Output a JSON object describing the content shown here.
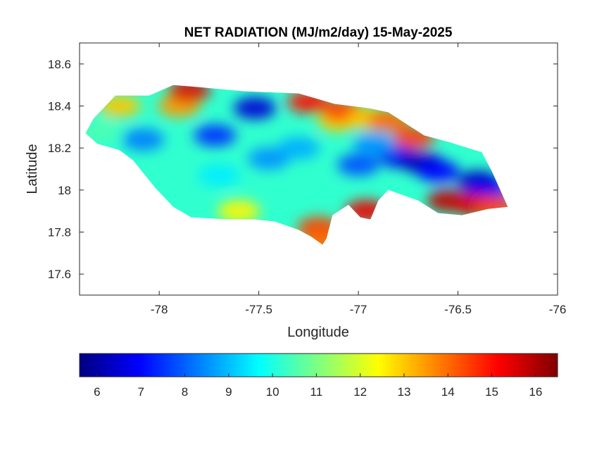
{
  "chart_data": {
    "type": "heatmap",
    "title": "NET RADIATION (MJ/m2/day) 15-May-2025",
    "xlabel": "Longitude",
    "ylabel": "Latitude",
    "xlim": [
      -78.4,
      -76
    ],
    "ylim": [
      17.5,
      18.7
    ],
    "x_ticks": [
      -78,
      -77.5,
      -77,
      -76.5,
      -76
    ],
    "x_tick_labels": [
      "-78",
      "-77.5",
      "-77",
      "-76.5",
      "-76"
    ],
    "y_ticks": [
      17.6,
      17.8,
      18,
      18.2,
      18.4,
      18.6
    ],
    "y_tick_labels": [
      "17.6",
      "17.8",
      "18",
      "18.2",
      "18.4",
      "18.6"
    ],
    "colormap": "jet",
    "colorbar": {
      "placement": "bottom",
      "range": [
        5.6,
        16.5
      ],
      "ticks": [
        6,
        7,
        8,
        9,
        10,
        11,
        12,
        13,
        14,
        15,
        16
      ],
      "tick_labels": [
        "6",
        "7",
        "8",
        "9",
        "10",
        "11",
        "12",
        "13",
        "14",
        "15",
        "16"
      ]
    },
    "grid": false,
    "region_outline": [
      [
        -78.37,
        18.27
      ],
      [
        -78.33,
        18.34
      ],
      [
        -78.22,
        18.45
      ],
      [
        -78.05,
        18.45
      ],
      [
        -77.93,
        18.5
      ],
      [
        -77.8,
        18.49
      ],
      [
        -77.57,
        18.47
      ],
      [
        -77.3,
        18.46
      ],
      [
        -77.12,
        18.41
      ],
      [
        -76.95,
        18.39
      ],
      [
        -76.85,
        18.37
      ],
      [
        -76.67,
        18.26
      ],
      [
        -76.55,
        18.23
      ],
      [
        -76.38,
        18.18
      ],
      [
        -76.33,
        18.09
      ],
      [
        -76.25,
        17.92
      ],
      [
        -76.35,
        17.91
      ],
      [
        -76.48,
        17.88
      ],
      [
        -76.6,
        17.89
      ],
      [
        -76.7,
        17.95
      ],
      [
        -76.85,
        18.0
      ],
      [
        -76.9,
        17.95
      ],
      [
        -76.94,
        17.86
      ],
      [
        -76.99,
        17.87
      ],
      [
        -77.05,
        17.93
      ],
      [
        -77.13,
        17.88
      ],
      [
        -77.16,
        17.77
      ],
      [
        -77.18,
        17.74
      ],
      [
        -77.24,
        17.78
      ],
      [
        -77.3,
        17.81
      ],
      [
        -77.42,
        17.85
      ],
      [
        -77.52,
        17.86
      ],
      [
        -77.66,
        17.86
      ],
      [
        -77.84,
        17.87
      ],
      [
        -77.93,
        17.92
      ],
      [
        -78.02,
        18.01
      ],
      [
        -78.13,
        18.14
      ],
      [
        -78.2,
        18.19
      ],
      [
        -78.31,
        18.22
      ]
    ],
    "features": [
      {
        "lon": -77.52,
        "lat": 18.39,
        "value": 6.5
      },
      {
        "lon": -77.72,
        "lat": 18.26,
        "value": 7.5
      },
      {
        "lon": -78.08,
        "lat": 18.24,
        "value": 8.3
      },
      {
        "lon": -77.45,
        "lat": 18.15,
        "value": 8.5
      },
      {
        "lon": -77.3,
        "lat": 18.2,
        "value": 8.8
      },
      {
        "lon": -76.8,
        "lat": 18.16,
        "value": 6.8
      },
      {
        "lon": -76.68,
        "lat": 18.13,
        "value": 6.2
      },
      {
        "lon": -76.6,
        "lat": 18.09,
        "value": 7.0
      },
      {
        "lon": -76.4,
        "lat": 18.04,
        "value": 6.3
      },
      {
        "lon": -76.35,
        "lat": 18.0,
        "value": 6.8
      },
      {
        "lon": -77.0,
        "lat": 18.12,
        "value": 7.8
      },
      {
        "lon": -76.92,
        "lat": 18.22,
        "value": 8.5
      },
      {
        "lon": -77.7,
        "lat": 18.07,
        "value": 9.5
      },
      {
        "lon": -77.9,
        "lat": 18.4,
        "value": 13.5
      },
      {
        "lon": -77.85,
        "lat": 18.47,
        "value": 15.5
      },
      {
        "lon": -77.25,
        "lat": 18.42,
        "value": 15.0
      },
      {
        "lon": -77.1,
        "lat": 18.33,
        "value": 13.0
      },
      {
        "lon": -77.08,
        "lat": 18.38,
        "value": 14.5
      },
      {
        "lon": -76.95,
        "lat": 18.34,
        "value": 13.0
      },
      {
        "lon": -76.85,
        "lat": 18.33,
        "value": 14.0
      },
      {
        "lon": -76.72,
        "lat": 18.25,
        "value": 14.5
      },
      {
        "lon": -77.2,
        "lat": 17.82,
        "value": 14.5
      },
      {
        "lon": -77.18,
        "lat": 17.75,
        "value": 14.0
      },
      {
        "lon": -76.96,
        "lat": 17.9,
        "value": 15.3
      },
      {
        "lon": -76.55,
        "lat": 17.95,
        "value": 15.8
      },
      {
        "lon": -76.42,
        "lat": 17.93,
        "value": 15.5
      },
      {
        "lon": -76.3,
        "lat": 17.92,
        "value": 14.5
      },
      {
        "lon": -77.6,
        "lat": 17.9,
        "value": 12.5
      },
      {
        "lon": -78.3,
        "lat": 18.28,
        "value": 10.5
      },
      {
        "lon": -78.2,
        "lat": 18.4,
        "value": 13.0
      }
    ],
    "background_value": 10.2
  }
}
